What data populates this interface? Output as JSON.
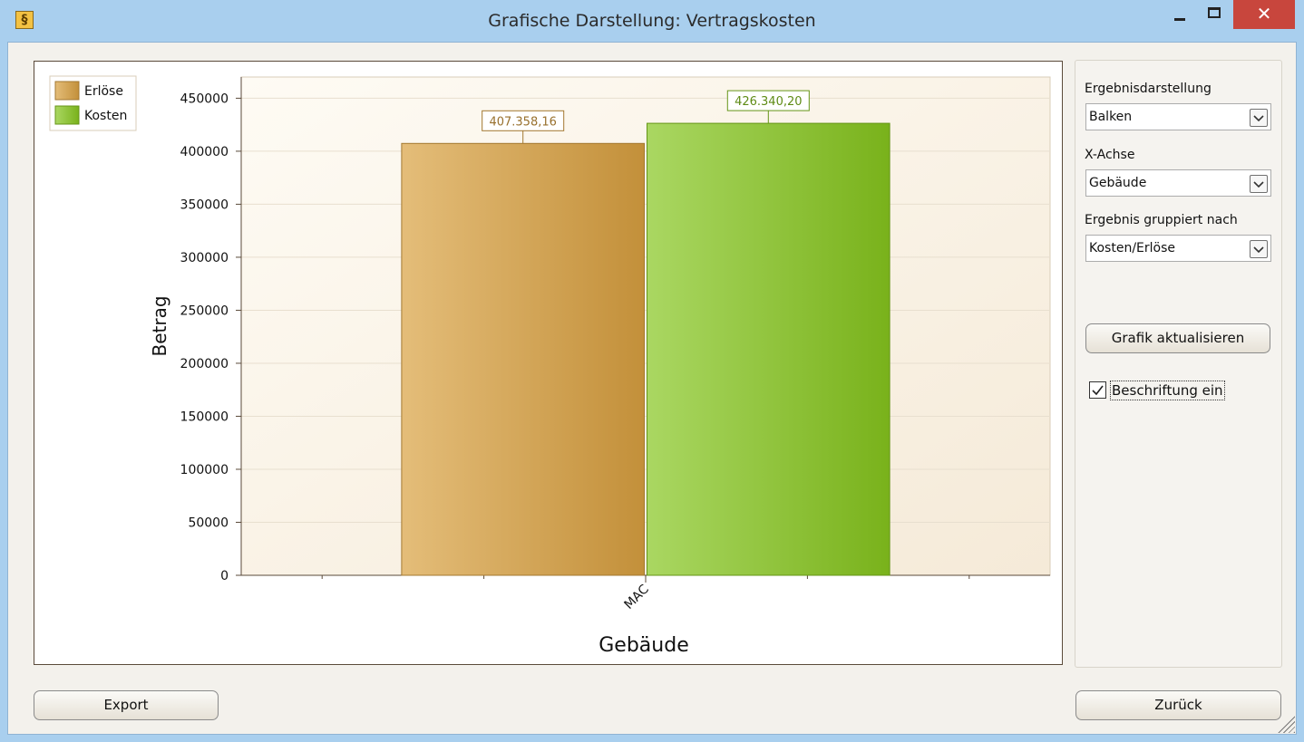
{
  "window": {
    "title": "Grafische Darstellung: Vertragskosten"
  },
  "chart_data": {
    "type": "bar",
    "categories": [
      "MAC"
    ],
    "series": [
      {
        "name": "Erlöse",
        "color": "#d9a040",
        "values": [
          407358.16
        ],
        "value_labels": [
          "407.358,16"
        ]
      },
      {
        "name": "Kosten",
        "color": "#86c61e",
        "values": [
          426340.2
        ],
        "value_labels": [
          "426.340,20"
        ]
      }
    ],
    "x_label": "Gebäude",
    "y_label": "Betrag",
    "ylim": [
      0,
      470000
    ],
    "yticks": [
      0,
      50000,
      100000,
      150000,
      200000,
      250000,
      300000,
      350000,
      400000,
      450000
    ],
    "grid": true,
    "legend": "top-left"
  },
  "panel": {
    "fields": [
      {
        "label": "Ergebnisdarstellung",
        "value": "Balken"
      },
      {
        "label": "X-Achse",
        "value": "Gebäude"
      },
      {
        "label": "Ergebnis gruppiert nach",
        "value": "Kosten/Erlöse"
      }
    ],
    "update_button": "Grafik aktualisieren",
    "checkbox": {
      "label": "Beschriftung ein",
      "checked": true
    }
  },
  "buttons": {
    "export": "Export",
    "back": "Zurück"
  }
}
